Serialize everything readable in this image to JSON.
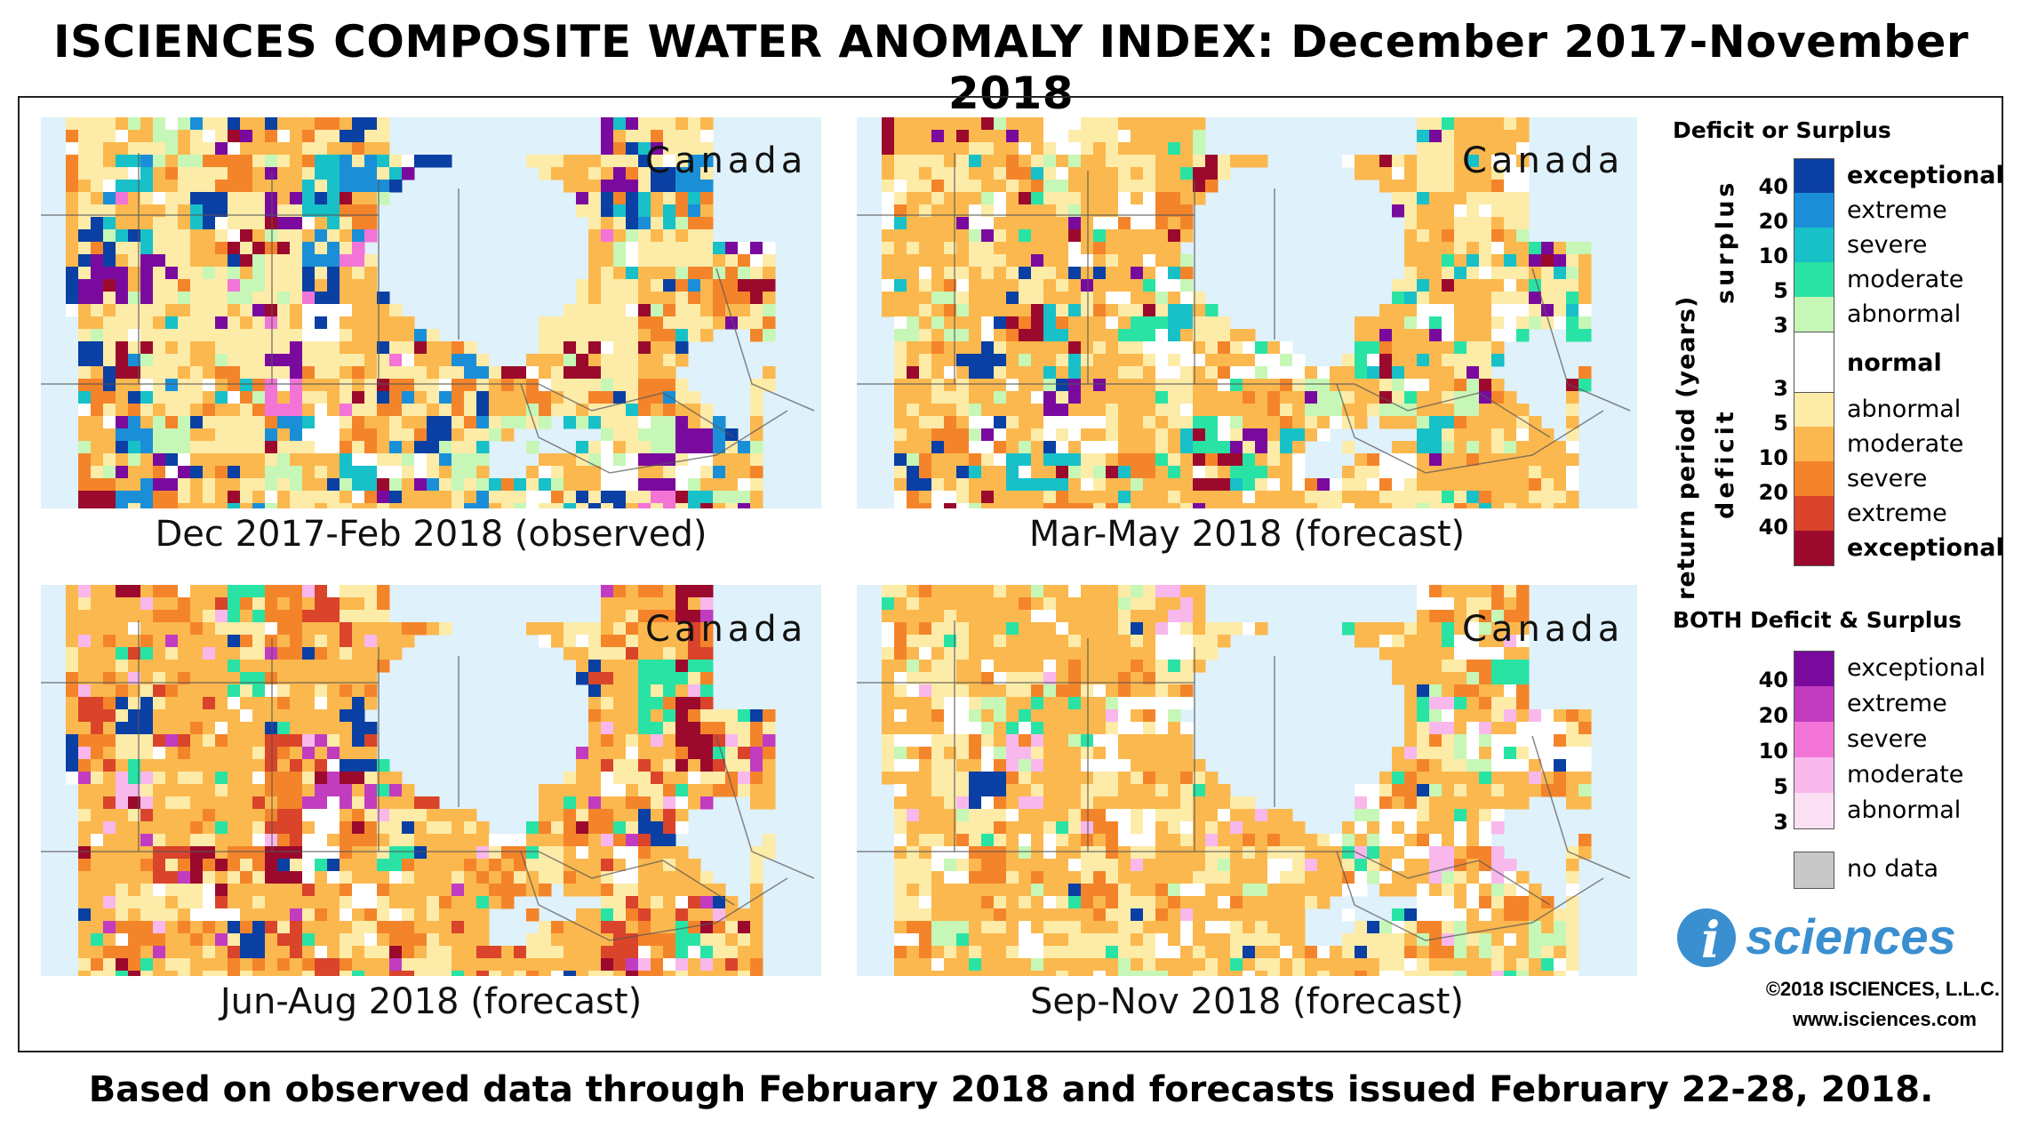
{
  "title": "ISCIENCES COMPOSITE WATER ANOMALY INDEX: December 2017-November 2018",
  "footer": "Based on observed data through February 2018 and forecasts issued February 22-28, 2018.",
  "maps": [
    {
      "region": "Canada",
      "caption": "Dec 2017-Feb 2018 (observed)"
    },
    {
      "region": "Canada",
      "caption": "Mar-May 2018 (forecast)"
    },
    {
      "region": "Canada",
      "caption": "Jun-Aug 2018 (forecast)"
    },
    {
      "region": "Canada",
      "caption": "Sep-Nov 2018 (forecast)"
    }
  ],
  "legend": {
    "title1": "Deficit or Surplus",
    "axis_label": "return period (years)",
    "surplus_label": "surplus",
    "deficit_label": "deficit",
    "surplus_classes": [
      {
        "label": "exceptional",
        "color": "#0a3fa3"
      },
      {
        "label": "extreme",
        "color": "#1a8fd8"
      },
      {
        "label": "severe",
        "color": "#18c0c8"
      },
      {
        "label": "moderate",
        "color": "#29e3a4"
      },
      {
        "label": "abnormal",
        "color": "#c6f7b6"
      }
    ],
    "surplus_ticks": [
      "40",
      "20",
      "10",
      "5",
      "3"
    ],
    "normal_label": "normal",
    "deficit_classes": [
      {
        "label": "abnormal",
        "color": "#fdeba8"
      },
      {
        "label": "moderate",
        "color": "#fbb84e"
      },
      {
        "label": "severe",
        "color": "#f4842a"
      },
      {
        "label": "extreme",
        "color": "#d9442a"
      },
      {
        "label": "exceptional",
        "color": "#9b0a2c"
      }
    ],
    "deficit_ticks": [
      "3",
      "5",
      "10",
      "20",
      "40"
    ],
    "title2": "BOTH Deficit & Surplus",
    "both_classes": [
      {
        "label": "exceptional",
        "color": "#7a0a9e"
      },
      {
        "label": "extreme",
        "color": "#c13cbf"
      },
      {
        "label": "severe",
        "color": "#f274d6"
      },
      {
        "label": "moderate",
        "color": "#f8b8ec"
      },
      {
        "label": "abnormal",
        "color": "#fbe0f3"
      }
    ],
    "both_ticks": [
      "40",
      "20",
      "10",
      "5",
      "3"
    ],
    "nodata_label": "no data",
    "nodata_color": "#c8c8c8"
  },
  "logo_text": "sciences",
  "logo_i": "i",
  "copyright": "©2018 ISCIENCES, L.L.C.",
  "website": "www.isciences.com"
}
